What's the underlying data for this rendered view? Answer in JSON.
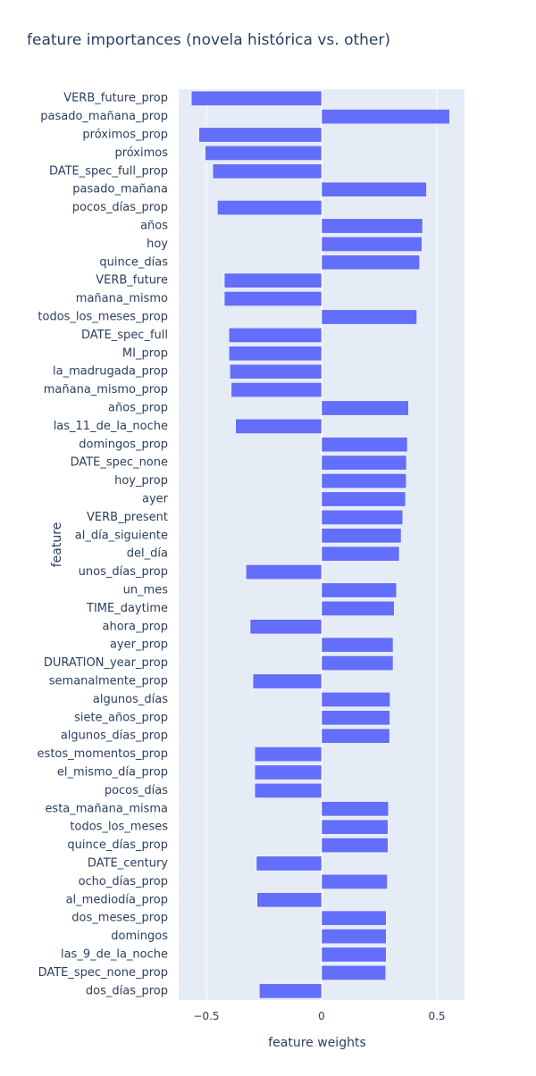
{
  "chart_data": {
    "type": "bar",
    "orientation": "horizontal",
    "title": "feature importances (novela histórica vs. other)",
    "xlabel": "feature weights",
    "ylabel": "feature",
    "xlim": [
      -0.62,
      0.62
    ],
    "xticks": [
      -0.5,
      0,
      0.5
    ],
    "xtick_labels": [
      "−0.5",
      "0",
      "0.5"
    ],
    "grid": true,
    "bar_color": "#636efa",
    "plot_bg": "#e5ecf6",
    "categories": [
      "VERB_future_prop",
      "pasado_mañana_prop",
      "próximos_prop",
      "próximos",
      "DATE_spec_full_prop",
      "pasado_mañana",
      "pocos_días_prop",
      "años",
      "hoy",
      "quince_días",
      "VERB_future",
      "mañana_mismo",
      "todos_los_meses_prop",
      "DATE_spec_full",
      "MI_prop",
      "la_madrugada_prop",
      "mañana_mismo_prop",
      "años_prop",
      "las_11_de_la_noche",
      "domingos_prop",
      "DATE_spec_none",
      "hoy_prop",
      "ayer",
      "VERB_present",
      "al_día_siguiente",
      "del_día",
      "unos_días_prop",
      "un_mes",
      "TIME_daytime",
      "ahora_prop",
      "ayer_prop",
      "DURATION_year_prop",
      "semanalmente_prop",
      "algunos_días",
      "siete_años_prop",
      "algunos_días_prop",
      "estos_momentos_prop",
      "el_mismo_día_prop",
      "pocos_días",
      "esta_mañana_misma",
      "todos_los_meses",
      "quince_días_prop",
      "DATE_century",
      "ocho_días_prop",
      "al_mediodía_prop",
      "dos_meses_prop",
      "domingos",
      "las_9_de_la_noche",
      "DATE_spec_none_prop",
      "dos_días_prop"
    ],
    "values": [
      -0.565,
      0.555,
      -0.532,
      -0.505,
      -0.472,
      0.455,
      -0.452,
      0.438,
      0.435,
      0.425,
      -0.422,
      -0.422,
      0.413,
      -0.402,
      -0.402,
      -0.398,
      -0.392,
      0.377,
      -0.373,
      0.372,
      0.368,
      0.367,
      0.364,
      0.352,
      0.345,
      0.337,
      -0.328,
      0.325,
      0.315,
      -0.31,
      0.31,
      0.31,
      -0.298,
      0.297,
      0.296,
      0.295,
      -0.29,
      -0.29,
      -0.29,
      0.29,
      0.288,
      0.288,
      -0.283,
      0.285,
      -0.28,
      0.28,
      0.28,
      0.28,
      0.278,
      -0.27
    ]
  }
}
